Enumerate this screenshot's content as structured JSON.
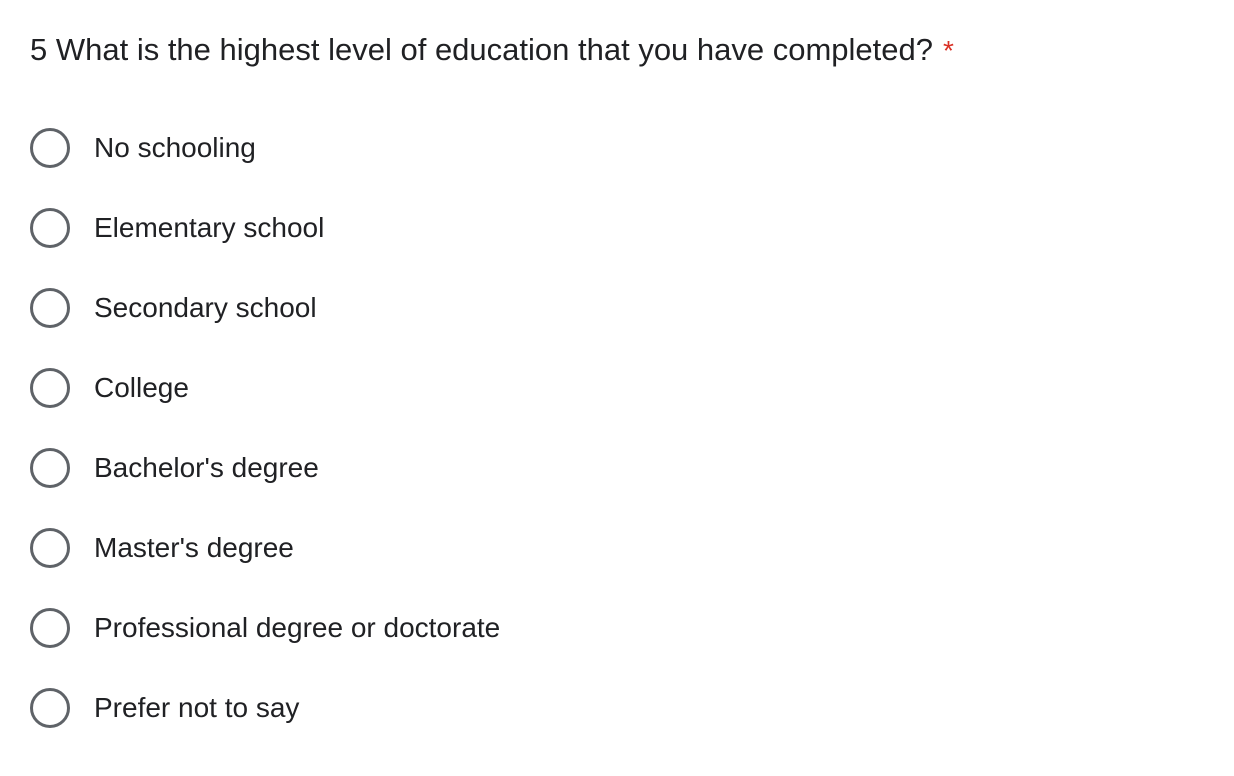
{
  "question": {
    "title": "5 What is the highest level of education that you have completed?",
    "required_marker": "*",
    "required_color": "#d93025"
  },
  "options": [
    {
      "label": "No schooling",
      "selected": false
    },
    {
      "label": "Elementary school",
      "selected": false
    },
    {
      "label": "Secondary school",
      "selected": false
    },
    {
      "label": "College",
      "selected": false
    },
    {
      "label": "Bachelor's degree",
      "selected": false
    },
    {
      "label": "Master's degree",
      "selected": false
    },
    {
      "label": "Professional degree or doctorate",
      "selected": false
    },
    {
      "label": "Prefer not to say",
      "selected": false
    }
  ],
  "colors": {
    "text": "#202124",
    "radio_border": "#5f6368"
  }
}
